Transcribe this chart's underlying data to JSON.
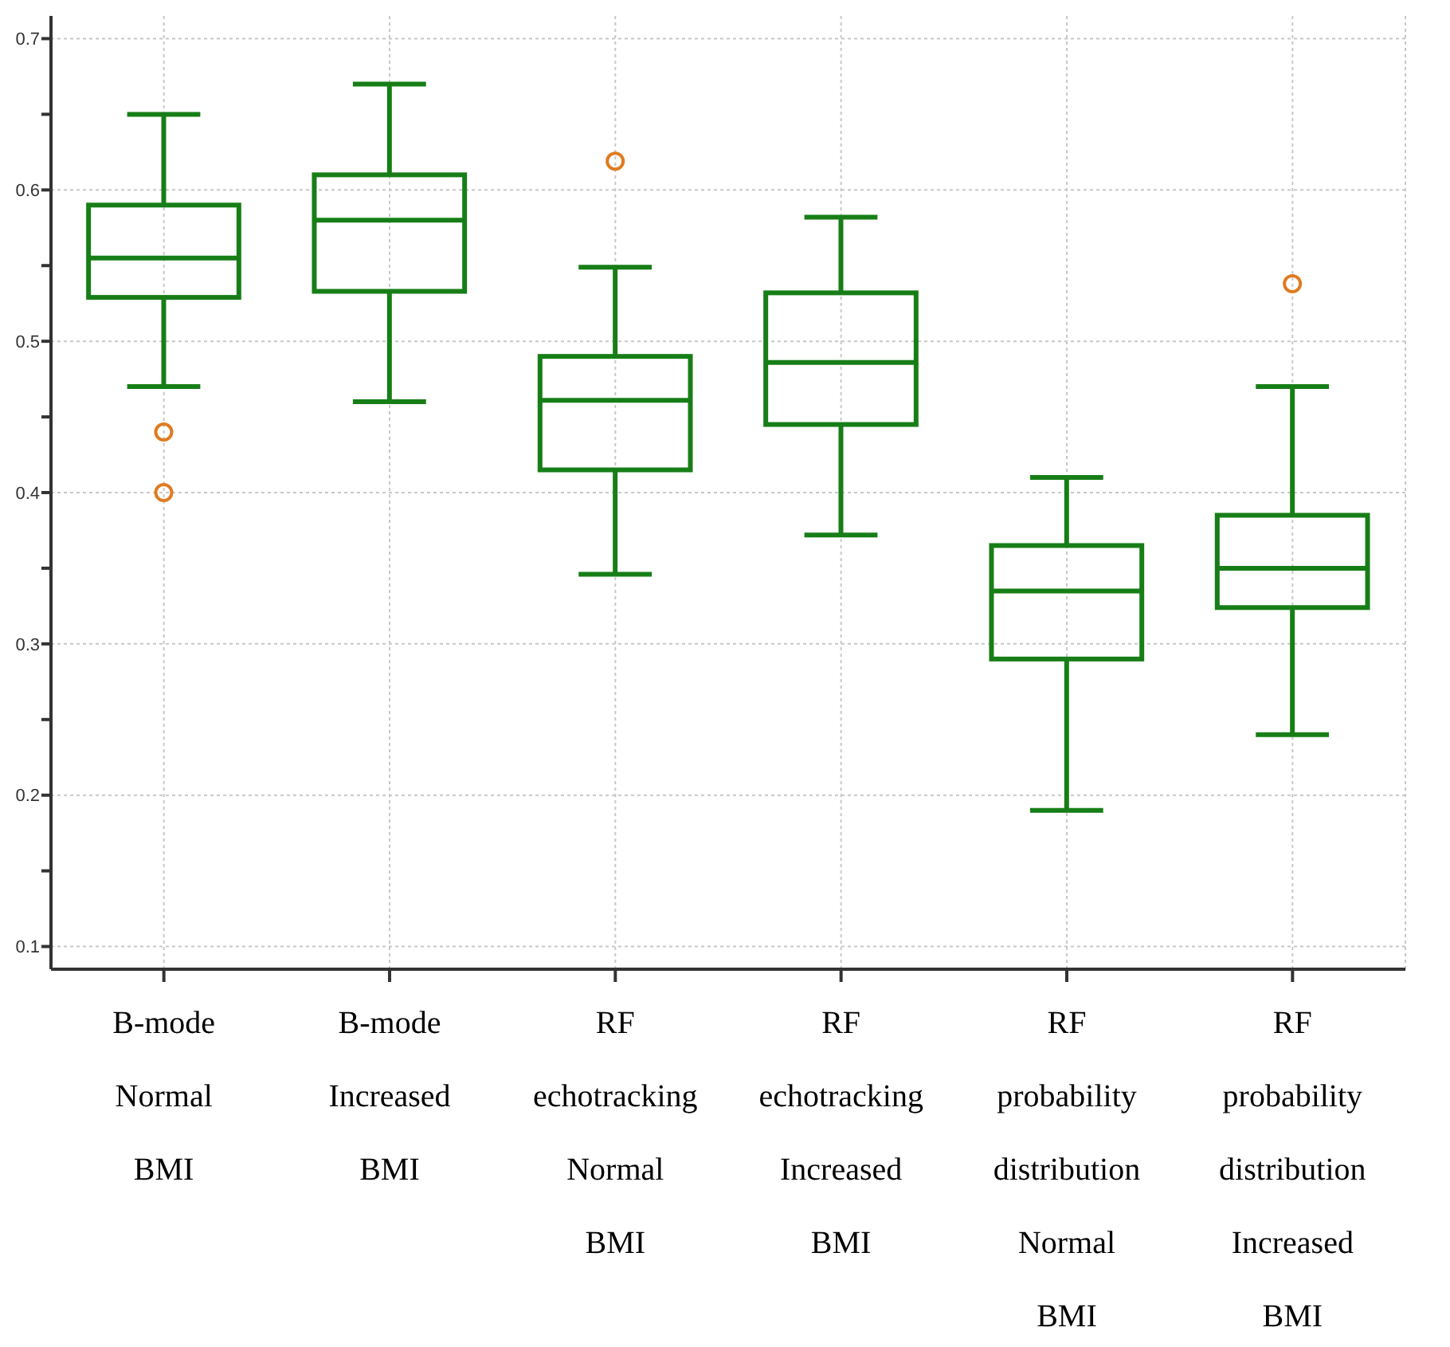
{
  "chart_data": {
    "type": "box",
    "categories": [
      "B-mode Normal BMI",
      "B-mode Increased BMI",
      "RF echotracking Normal BMI",
      "RF echotracking Increased BMI",
      "RF probability distribution Normal BMI",
      "RF probability distribution Increased BMI"
    ],
    "boxes": [
      {
        "low": 0.47,
        "q1": 0.529,
        "median": 0.555,
        "q3": 0.59,
        "high": 0.65,
        "outliers": [
          0.44,
          0.4
        ]
      },
      {
        "low": 0.46,
        "q1": 0.533,
        "median": 0.58,
        "q3": 0.61,
        "high": 0.67
      },
      {
        "low": 0.346,
        "q1": 0.415,
        "median": 0.461,
        "q3": 0.49,
        "high": 0.549,
        "outliers": [
          0.619
        ]
      },
      {
        "low": 0.372,
        "q1": 0.445,
        "median": 0.486,
        "q3": 0.532,
        "high": 0.582
      },
      {
        "low": 0.19,
        "q1": 0.29,
        "median": 0.335,
        "q3": 0.365,
        "high": 0.41
      },
      {
        "low": 0.24,
        "q1": 0.324,
        "median": 0.35,
        "q3": 0.385,
        "high": 0.47,
        "outliers": [
          0.538
        ]
      }
    ],
    "color": "#177e17",
    "ylim": [
      0.085,
      0.715
    ],
    "yticks": [
      0.1,
      {
        "value": 0.15,
        "label": null
      },
      0.2,
      {
        "value": 0.25,
        "label": null
      },
      0.3,
      {
        "value": 0.35,
        "label": null
      },
      0.4,
      {
        "value": 0.45,
        "label": null
      },
      0.5,
      {
        "value": 0.55,
        "label": null
      },
      0.6,
      {
        "value": 0.65,
        "label": null
      },
      0.7
    ],
    "grid": true
  }
}
